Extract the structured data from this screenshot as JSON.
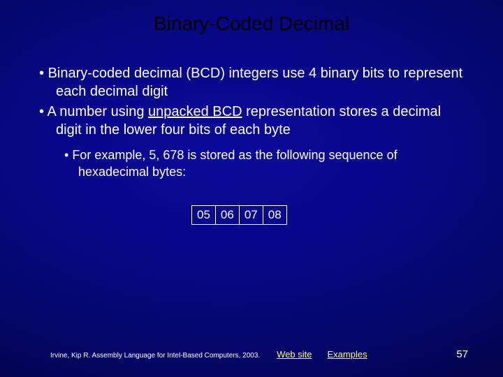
{
  "title": "Binary-Coded Decimal",
  "bullets": {
    "b1": "Binary-coded decimal (BCD) integers use 4 binary bits to represent each decimal digit",
    "b2_pre": "A number using ",
    "b2_emph": "unpacked BCD",
    "b2_post": " representation stores a decimal digit in the lower four bits of each byte",
    "b3": "For example, 5, 678 is stored as the following sequence of hexadecimal bytes:"
  },
  "bytes": [
    "05",
    "06",
    "07",
    "08"
  ],
  "footer": {
    "reference": "Irvine, Kip R. Assembly Language for Intel-Based Computers, 2003.",
    "link1": "Web site",
    "link2": "Examples",
    "page": "57"
  },
  "colors": {
    "title_color": "#000000",
    "text_color": "#ffffff",
    "link_color": "#ffff66",
    "bg_center": "#0a0a9a",
    "bg_edge": "#000018",
    "cell_border": "#ffffff"
  }
}
